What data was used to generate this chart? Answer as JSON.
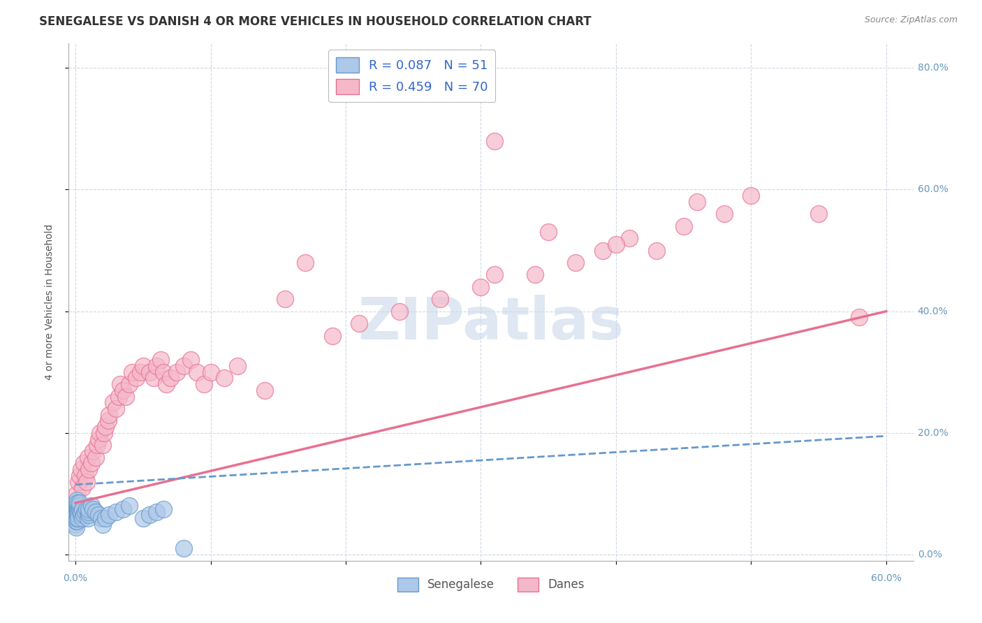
{
  "title": "SENEGALESE VS DANISH 4 OR MORE VEHICLES IN HOUSEHOLD CORRELATION CHART",
  "source_text": "Source: ZipAtlas.com",
  "ylabel_text": "4 or more Vehicles in Household",
  "xlim": [
    -0.005,
    0.62
  ],
  "ylim": [
    -0.01,
    0.84
  ],
  "xticks": [
    0.0,
    0.1,
    0.2,
    0.3,
    0.4,
    0.5,
    0.6
  ],
  "yticks": [
    0.0,
    0.2,
    0.4,
    0.6,
    0.8
  ],
  "xtick_labels": [
    "0.0%",
    "",
    "",
    "",
    "",
    "",
    "60.0%"
  ],
  "ytick_labels_right": [
    "0.0%",
    "20.0%",
    "40.0%",
    "60.0%",
    "80.0%"
  ],
  "senegalese_R": 0.087,
  "senegalese_N": 51,
  "danes_R": 0.459,
  "danes_N": 70,
  "senegalese_color": "#adc8e8",
  "senegalese_edge_color": "#6699cc",
  "senegalese_line_color": "#6699cc",
  "danes_color": "#f5b8cb",
  "danes_edge_color": "#e87090",
  "danes_line_color": "#e87090",
  "legend_label_senegalese": "Senegalese",
  "legend_label_danes": "Danes",
  "watermark_text": "ZIPatlas",
  "watermark_color": "#c8d8ea",
  "background_color": "#ffffff",
  "title_fontsize": 12,
  "axis_label_fontsize": 10,
  "tick_fontsize": 10,
  "legend_fontsize": 12,
  "grid_color": "#d0d8e4",
  "danes_line_start_y": 0.085,
  "danes_line_end_y": 0.4,
  "sen_line_start_y": 0.115,
  "sen_line_end_y": 0.195,
  "sen_x": [
    0.0002,
    0.0003,
    0.0004,
    0.0005,
    0.0006,
    0.0007,
    0.0008,
    0.0009,
    0.001,
    0.001,
    0.0011,
    0.0012,
    0.0013,
    0.0014,
    0.0015,
    0.0016,
    0.0017,
    0.0018,
    0.002,
    0.002,
    0.002,
    0.003,
    0.003,
    0.003,
    0.004,
    0.004,
    0.005,
    0.005,
    0.006,
    0.007,
    0.008,
    0.009,
    0.01,
    0.01,
    0.01,
    0.012,
    0.013,
    0.015,
    0.017,
    0.019,
    0.02,
    0.022,
    0.025,
    0.03,
    0.035,
    0.04,
    0.05,
    0.055,
    0.06,
    0.065,
    0.08
  ],
  "sen_y": [
    0.05,
    0.045,
    0.055,
    0.06,
    0.07,
    0.065,
    0.075,
    0.08,
    0.085,
    0.09,
    0.055,
    0.06,
    0.065,
    0.07,
    0.075,
    0.08,
    0.085,
    0.075,
    0.07,
    0.065,
    0.06,
    0.075,
    0.08,
    0.085,
    0.065,
    0.07,
    0.075,
    0.06,
    0.065,
    0.07,
    0.075,
    0.06,
    0.065,
    0.07,
    0.075,
    0.08,
    0.075,
    0.07,
    0.065,
    0.06,
    0.05,
    0.06,
    0.065,
    0.07,
    0.075,
    0.08,
    0.06,
    0.065,
    0.07,
    0.075,
    0.01
  ],
  "dan_x": [
    0.001,
    0.002,
    0.003,
    0.004,
    0.005,
    0.006,
    0.007,
    0.008,
    0.009,
    0.01,
    0.012,
    0.013,
    0.015,
    0.016,
    0.017,
    0.018,
    0.02,
    0.021,
    0.022,
    0.024,
    0.025,
    0.028,
    0.03,
    0.032,
    0.033,
    0.035,
    0.037,
    0.04,
    0.042,
    0.045,
    0.048,
    0.05,
    0.055,
    0.058,
    0.06,
    0.063,
    0.065,
    0.067,
    0.07,
    0.075,
    0.08,
    0.085,
    0.09,
    0.095,
    0.1,
    0.11,
    0.12,
    0.14,
    0.155,
    0.17,
    0.19,
    0.21,
    0.24,
    0.27,
    0.3,
    0.31,
    0.34,
    0.37,
    0.39,
    0.41,
    0.43,
    0.45,
    0.46,
    0.48,
    0.5,
    0.31,
    0.35,
    0.4,
    0.55,
    0.58
  ],
  "dan_y": [
    0.1,
    0.12,
    0.13,
    0.14,
    0.11,
    0.15,
    0.13,
    0.12,
    0.16,
    0.14,
    0.15,
    0.17,
    0.16,
    0.18,
    0.19,
    0.2,
    0.18,
    0.2,
    0.21,
    0.22,
    0.23,
    0.25,
    0.24,
    0.26,
    0.28,
    0.27,
    0.26,
    0.28,
    0.3,
    0.29,
    0.3,
    0.31,
    0.3,
    0.29,
    0.31,
    0.32,
    0.3,
    0.28,
    0.29,
    0.3,
    0.31,
    0.32,
    0.3,
    0.28,
    0.3,
    0.29,
    0.31,
    0.27,
    0.42,
    0.48,
    0.36,
    0.38,
    0.4,
    0.42,
    0.44,
    0.46,
    0.46,
    0.48,
    0.5,
    0.52,
    0.5,
    0.54,
    0.58,
    0.56,
    0.59,
    0.68,
    0.53,
    0.51,
    0.56,
    0.39
  ]
}
